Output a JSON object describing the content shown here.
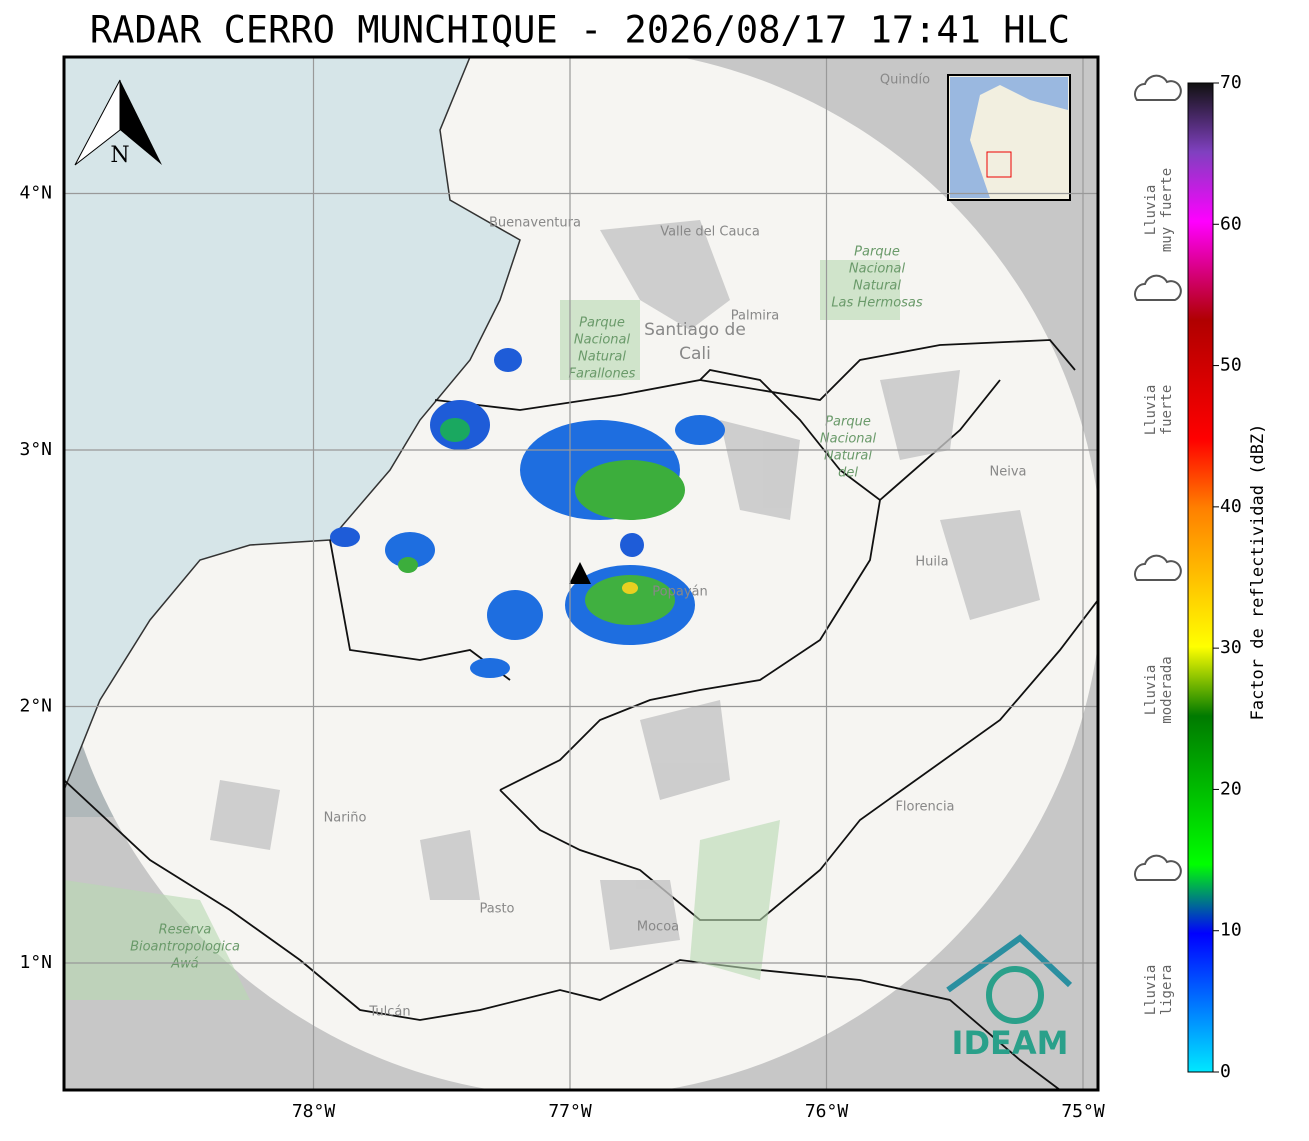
{
  "title": "RADAR CERRO MUNCHIQUE - 2026/08/17 17:41 HLC",
  "north": "N",
  "logo": "IDEAM",
  "lat_ticks": [
    {
      "value": 4,
      "label": "4°N"
    },
    {
      "value": 3,
      "label": "3°N"
    },
    {
      "value": 2,
      "label": "2°N"
    },
    {
      "value": 1,
      "label": "1°N"
    }
  ],
  "lon_ticks": [
    {
      "value": -78,
      "label": "78°W"
    },
    {
      "value": -77,
      "label": "77°W"
    },
    {
      "value": -76,
      "label": "76°W"
    },
    {
      "value": -75,
      "label": "75°W"
    }
  ],
  "colorbar": {
    "label": "Factor de reflectividad (dBZ)",
    "lim": [
      0,
      70
    ],
    "ticks": [
      0,
      10,
      20,
      30,
      40,
      50,
      60,
      70
    ]
  },
  "rain_legend": [
    [
      "Lluvia",
      "muy fuerte"
    ],
    [
      "Lluvia",
      "fuerte"
    ],
    [
      "Lluvia",
      "moderada"
    ],
    [
      "Lluvia",
      "ligera"
    ]
  ],
  "places": [
    [
      "Quindío"
    ],
    [
      "Buenaventura"
    ],
    [
      "Valle del Cauca"
    ],
    [
      "Palmira"
    ],
    [
      "Santiago de",
      "Cali"
    ],
    [
      "Neiva"
    ],
    [
      "Huila"
    ],
    [
      "Popayán"
    ],
    [
      "Nariño"
    ],
    [
      "Pasto"
    ],
    [
      "Mocoa"
    ],
    [
      "Florencia"
    ],
    [
      "Tulcán"
    ]
  ],
  "parks": [
    [
      "Parque",
      "Nacional",
      "Natural",
      "Farallones"
    ],
    [
      "Parque",
      "Nacional",
      "Natural",
      "Las Hermosas"
    ],
    [
      "Parque",
      "Nacional",
      "Natural",
      "del"
    ],
    [
      "Reserva",
      "Bioantropologica",
      "Awá"
    ]
  ]
}
